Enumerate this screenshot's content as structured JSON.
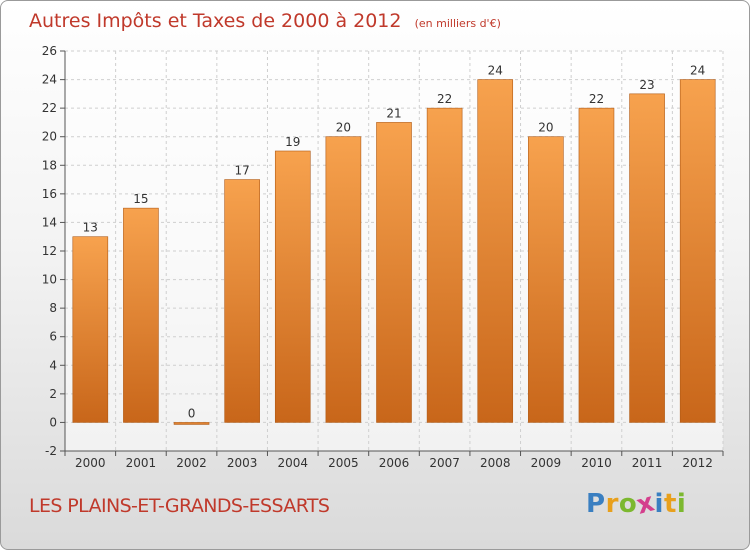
{
  "header": {
    "title": "Autres Impôts et Taxes de 2000 à 2012",
    "unit": "(en milliers d'€)"
  },
  "footer": {
    "commune": "LES PLAINS-ET-GRANDS-ESSARTS",
    "brand": "Proxiti",
    "brand_letters": [
      "P",
      "r",
      "o",
      "x",
      "i",
      "t",
      "i"
    ],
    "brand_colors": [
      "#3a7fc1",
      "#e8a01c",
      "#7cb82f",
      "#d43f8d",
      "#3a7fc1",
      "#e8a01c",
      "#7cb82f"
    ]
  },
  "chart_data": {
    "type": "bar",
    "title": "Autres Impôts et Taxes de 2000 à 2012",
    "subtitle": "(en milliers d'€)",
    "xlabel": "",
    "ylabel": "",
    "categories": [
      "2000",
      "2001",
      "2002",
      "2003",
      "2004",
      "2005",
      "2006",
      "2007",
      "2008",
      "2009",
      "2010",
      "2011",
      "2012"
    ],
    "values": [
      13,
      15,
      0,
      17,
      19,
      20,
      21,
      22,
      24,
      20,
      22,
      23,
      24
    ],
    "data_labels": [
      "13",
      "15",
      "0",
      "17",
      "19",
      "20",
      "21",
      "22",
      "24",
      "20",
      "22",
      "23",
      "24"
    ],
    "ylim": [
      -2,
      26
    ],
    "yticks": [
      -2,
      0,
      2,
      4,
      6,
      8,
      10,
      12,
      14,
      16,
      18,
      20,
      22,
      24,
      26
    ],
    "ytick_labels": [
      "-2",
      "0",
      "2",
      "4",
      "6",
      "8",
      "10",
      "12",
      "14",
      "16",
      "18",
      "20",
      "22",
      "24",
      "26"
    ],
    "grid": true,
    "bar_color_light": "#f7a24e",
    "bar_color_dark": "#c8661a"
  }
}
